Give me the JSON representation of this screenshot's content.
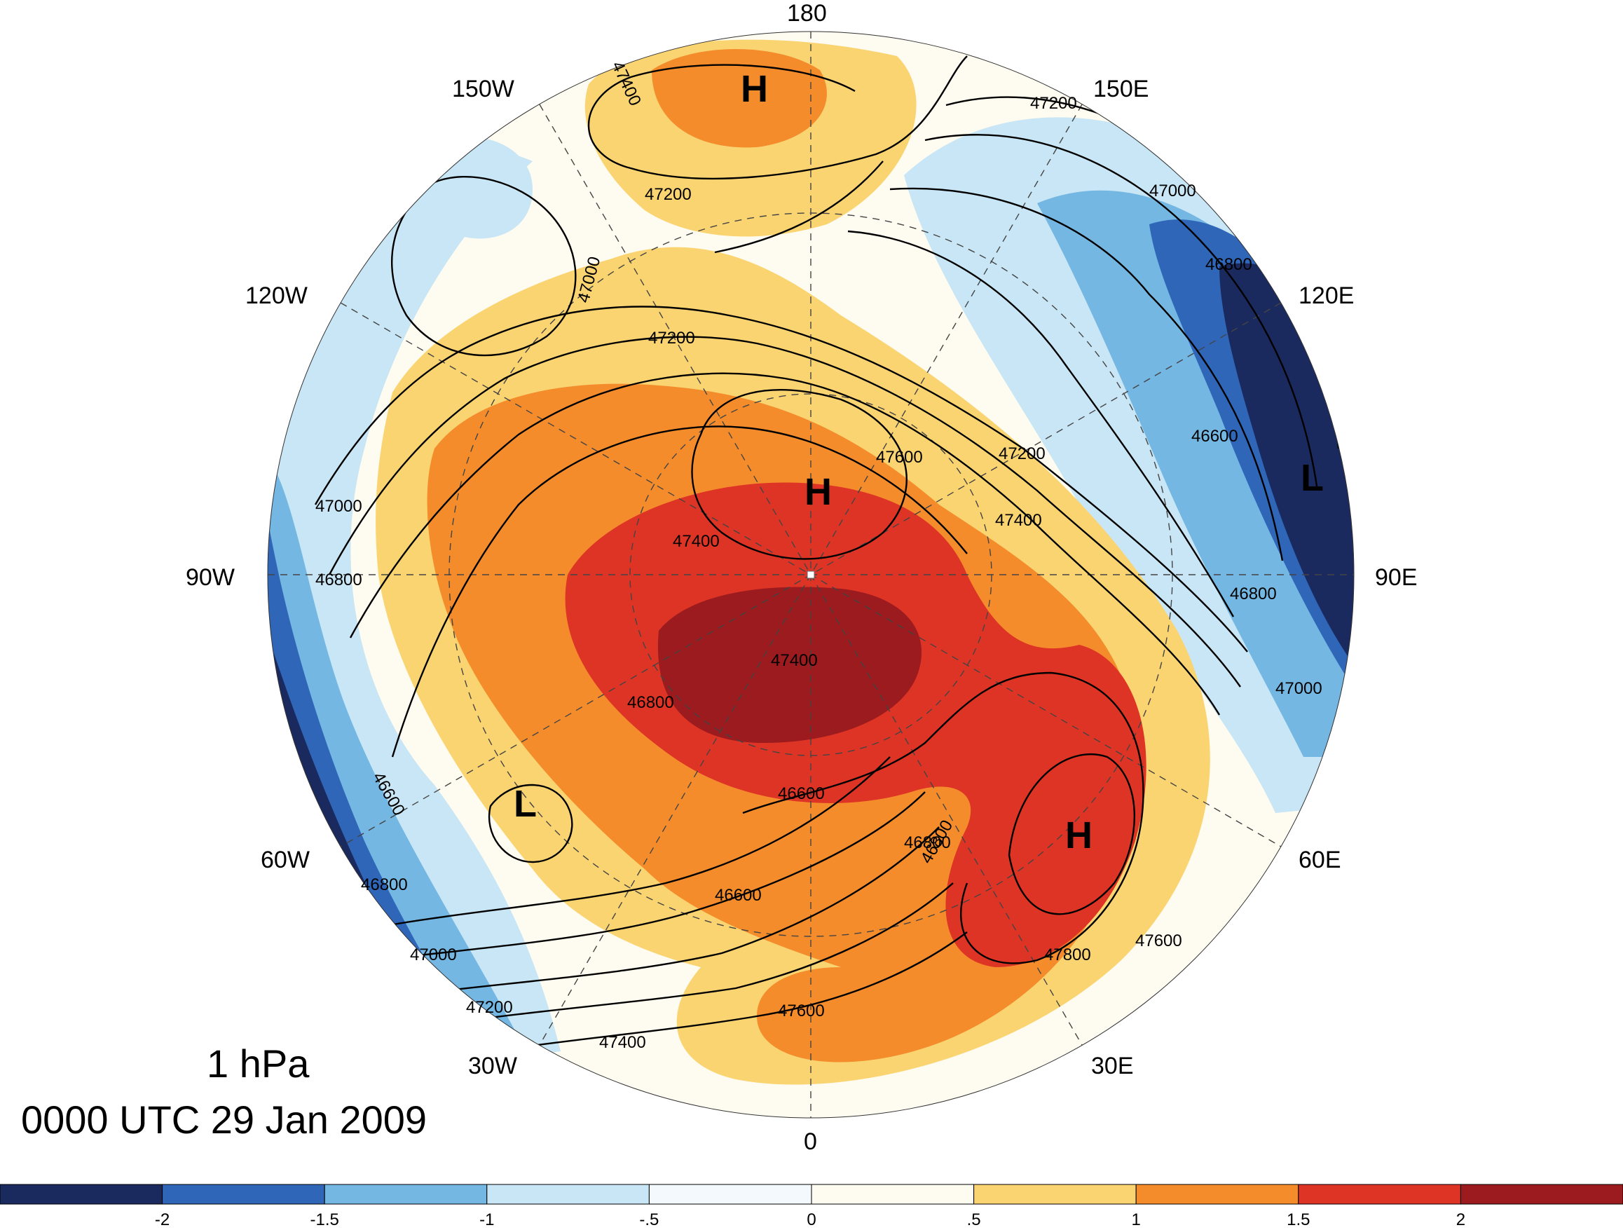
{
  "longitudes": {
    "lon_180": "180",
    "lon_150w": "150W",
    "lon_150e": "150E",
    "lon_120w": "120W",
    "lon_120e": "120E",
    "lon_90w": "90W",
    "lon_90e": "90E",
    "lon_60w": "60W",
    "lon_60e": "60E",
    "lon_30w": "30W",
    "lon_30e": "30E",
    "lon_0": "0"
  },
  "title": {
    "level": "1 hPa",
    "time": "0000 UTC 29 Jan 2009"
  },
  "centers": [
    {
      "label": "H"
    },
    {
      "label": "H"
    },
    {
      "label": "H"
    },
    {
      "label": "L"
    },
    {
      "label": "L"
    }
  ],
  "contour_labels": [
    "47400",
    "47200",
    "47200",
    "47000",
    "47200",
    "47000",
    "46800",
    "47000",
    "46800",
    "47400",
    "47600",
    "47200",
    "47400",
    "46600",
    "46800",
    "47000",
    "47400",
    "46800",
    "46600",
    "46800",
    "46600",
    "46800",
    "46600",
    "46800",
    "47000",
    "47200",
    "47400",
    "47800",
    "47600",
    "47600"
  ],
  "colorbar": {
    "colors": [
      "#1a2a5e",
      "#2f66b8",
      "#74b7e3",
      "#c8e6f5",
      "#f3f9fd",
      "#fefbf0",
      "#fbd472",
      "#f48c2c",
      "#de3425",
      "#9b1b1e"
    ],
    "ticks": [
      "-2",
      "-1.5",
      "-1",
      "-.5",
      "0",
      ".5",
      "1",
      "1.5",
      "2"
    ]
  }
}
